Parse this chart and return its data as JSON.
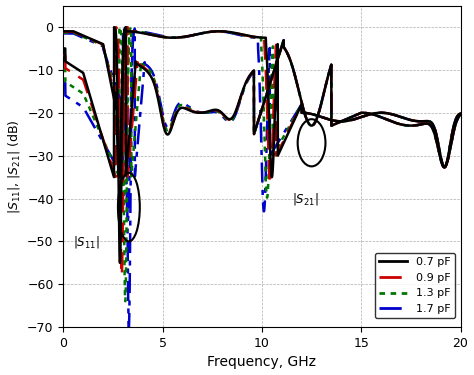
{
  "xlabel": "Frequency, GHz",
  "xlim": [
    0,
    20
  ],
  "ylim": [
    -70,
    5
  ],
  "yticks": [
    0,
    -10,
    -20,
    -30,
    -40,
    -50,
    -60,
    -70
  ],
  "xticks": [
    0,
    5,
    10,
    15,
    20
  ],
  "legend_labels": [
    "0.7 pF",
    "0.9 pF",
    "1.3 pF",
    "1.7 pF"
  ],
  "colors": [
    "#000000",
    "#cc0000",
    "#007700",
    "#0000cc"
  ],
  "cap_values": [
    0.7,
    0.9,
    1.3,
    1.7
  ],
  "figsize": [
    4.74,
    3.75
  ],
  "dpi": 100
}
